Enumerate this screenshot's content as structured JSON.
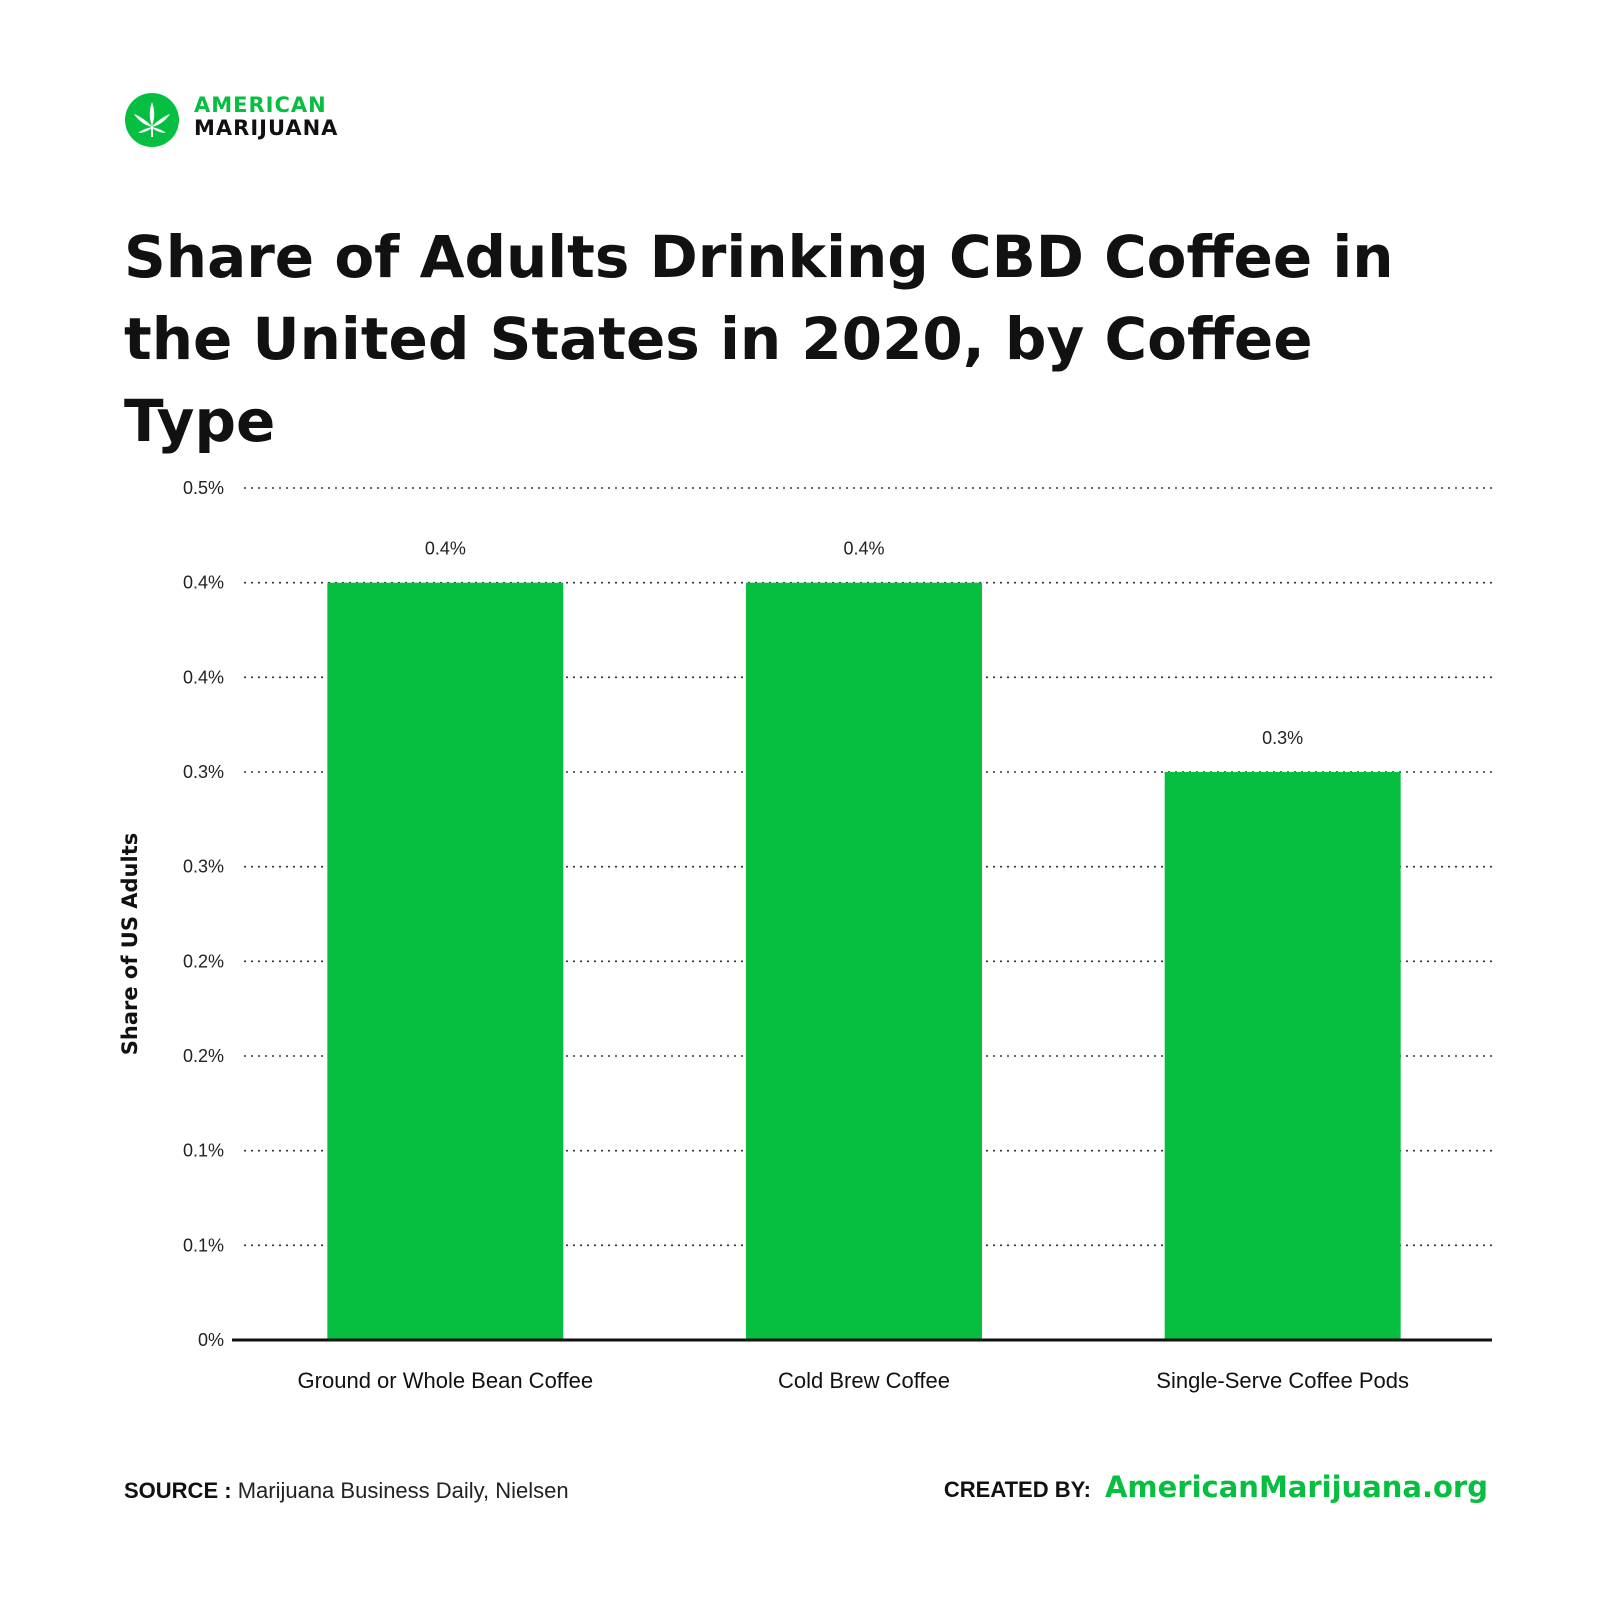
{
  "brand": {
    "line1": "AMERICAN",
    "line2": "MARIJUANA",
    "accent_color": "#06bf41",
    "icon": "cannabis-leaf-icon"
  },
  "footer": {
    "source_label": "SOURCE :",
    "source_text": "Marijuana Business Daily, Nielsen",
    "created_label": "CREATED BY:",
    "created_site": "AmericanMarijuana.org"
  },
  "chart_data": {
    "type": "bar",
    "title": "Share of Adults Drinking CBD Coffee in the United States in 2020, by Coffee Type",
    "xlabel": "",
    "ylabel": "Share of US Adults",
    "categories": [
      "Ground or Whole Bean Coffee",
      "Cold Brew Coffee",
      "Single-Serve Coffee Pods"
    ],
    "values": [
      0.4,
      0.4,
      0.3
    ],
    "data_labels": [
      "0.4%",
      "0.4%",
      "0.3%"
    ],
    "y_ticks": [
      {
        "value": 0,
        "label": "0%"
      },
      {
        "value": 0.05,
        "label": "0.1%"
      },
      {
        "value": 0.1,
        "label": "0.1%"
      },
      {
        "value": 0.15,
        "label": "0.2%"
      },
      {
        "value": 0.2,
        "label": "0.2%"
      },
      {
        "value": 0.25,
        "label": "0.3%"
      },
      {
        "value": 0.3,
        "label": "0.3%"
      },
      {
        "value": 0.35,
        "label": "0.4%"
      },
      {
        "value": 0.4,
        "label": "0.4%"
      },
      {
        "value": 0.45,
        "label": "0.5%"
      }
    ],
    "ylim": [
      0,
      0.45
    ],
    "grid": true,
    "bar_color": "#06bf41"
  }
}
